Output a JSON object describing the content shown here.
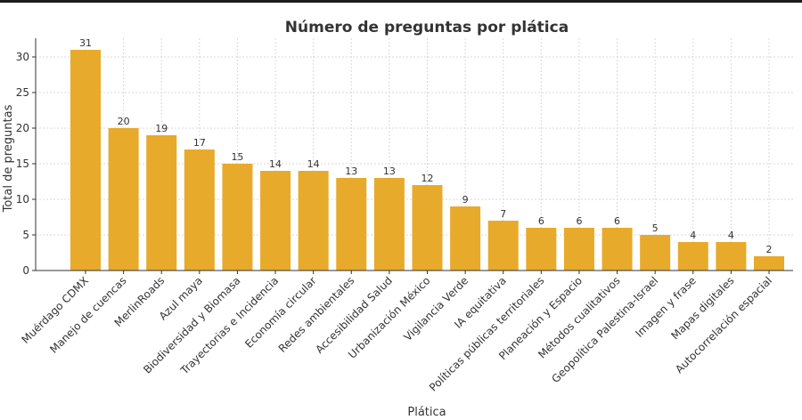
{
  "chart_data": {
    "type": "bar",
    "title": "Número de preguntas por plática",
    "xlabel": "Plática",
    "ylabel": "Total de preguntas",
    "categories": [
      "Muérdago CDMX",
      "Manejo de cuencas",
      "MerlinRoads",
      "Azul maya",
      "Biodiversidad y Biomasa",
      "Trayectorias e Incidencia",
      "Economía circular",
      "Redes ambientales",
      "Accesibilidad Salud",
      "Urbanización México",
      "Vigilancia Verde",
      "IA equitativa",
      "Políticas públicas territoriales",
      "Planeación y Espacio",
      "Métodos cualitativos",
      "Geopolítica Palestina-Israel",
      "Imagen y frase",
      "Mapas digitales",
      "Autocorrelación espacial"
    ],
    "values": [
      31,
      20,
      19,
      17,
      15,
      14,
      14,
      13,
      13,
      12,
      9,
      7,
      6,
      6,
      6,
      5,
      4,
      4,
      2
    ],
    "yticks": [
      0,
      5,
      10,
      15,
      20,
      25,
      30
    ],
    "ylim": [
      0,
      32.5
    ],
    "grid": true,
    "bar_color": "#E8AA2A"
  }
}
